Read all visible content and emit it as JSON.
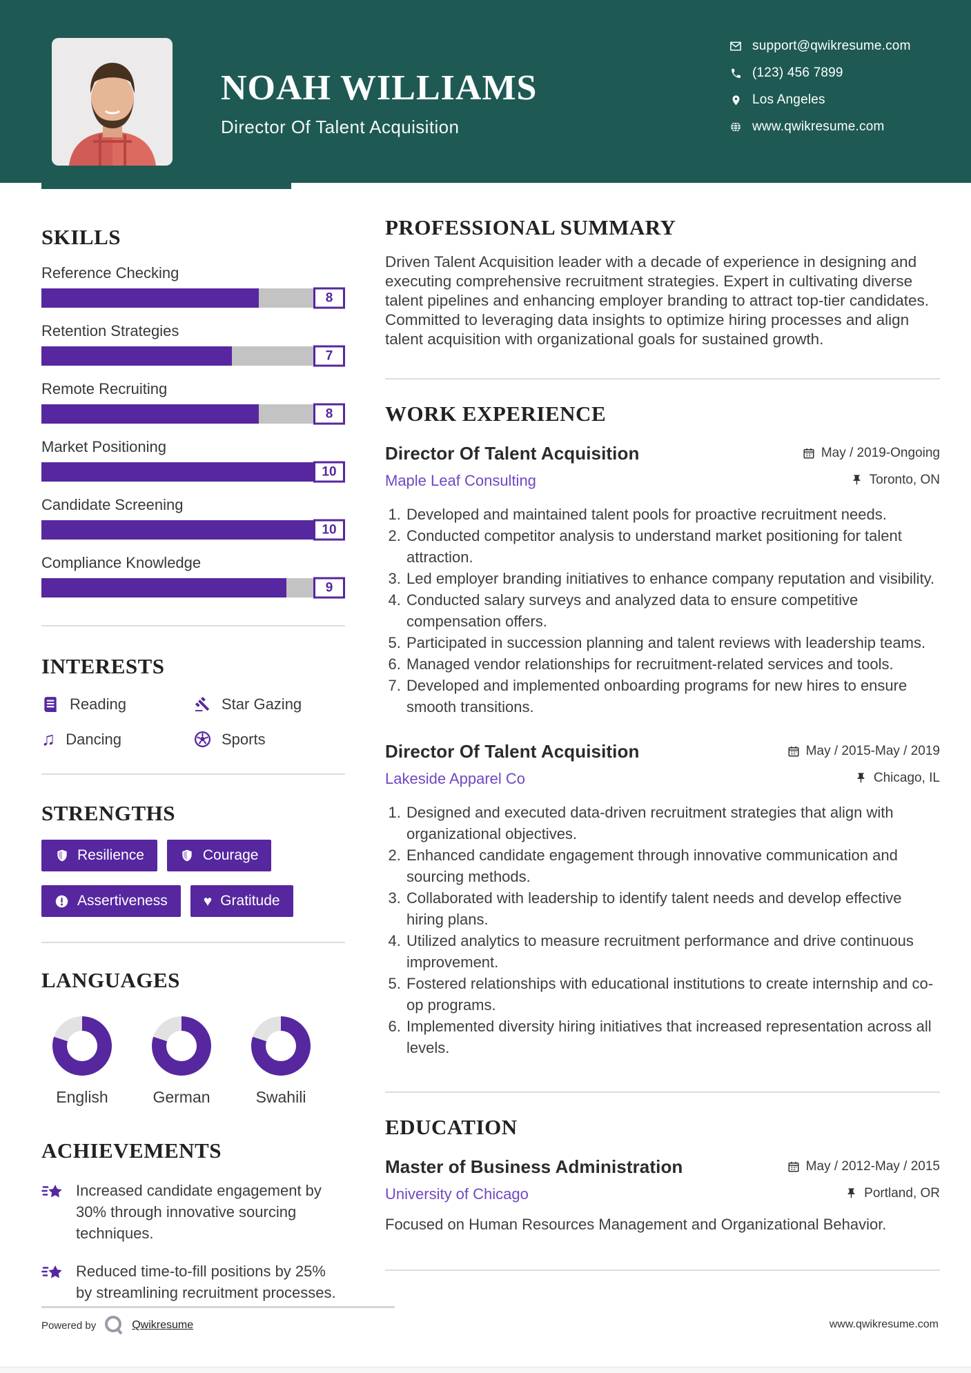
{
  "colors": {
    "accent_teal": "#1e5a53",
    "accent_purple": "#56279f",
    "link_purple": "#7048c0",
    "bar_track_gray": "#c3c3c3",
    "donut_gray": "#e2e2e2"
  },
  "header": {
    "name": "NOAH WILLIAMS",
    "headline": "Director Of Talent Acquisition",
    "contacts": [
      {
        "icon": "email-icon",
        "text": "support@qwikresume.com"
      },
      {
        "icon": "phone-icon",
        "text": "(123) 456 7899"
      },
      {
        "icon": "location-icon",
        "text": "Los Angeles"
      },
      {
        "icon": "globe-icon",
        "text": "www.qwikresume.com"
      }
    ]
  },
  "skills": {
    "title": "SKILLS",
    "max": 10,
    "items": [
      {
        "label": "Reference Checking",
        "value": 8
      },
      {
        "label": "Retention Strategies",
        "value": 7
      },
      {
        "label": "Remote Recruiting",
        "value": 8
      },
      {
        "label": "Market Positioning",
        "value": 10
      },
      {
        "label": "Candidate Screening",
        "value": 10
      },
      {
        "label": "Compliance Knowledge",
        "value": 9
      }
    ]
  },
  "interests": {
    "title": "INTERESTS",
    "items": [
      {
        "icon": "book-icon",
        "label": "Reading"
      },
      {
        "icon": "gavel-icon",
        "label": "Star Gazing"
      },
      {
        "icon": "music-note-icon",
        "label": "Dancing"
      },
      {
        "icon": "soccer-ball-icon",
        "label": "Sports"
      }
    ]
  },
  "strengths": {
    "title": "STRENGTHS",
    "items": [
      {
        "icon": "shield-icon",
        "label": "Resilience"
      },
      {
        "icon": "shield-icon",
        "label": "Courage"
      },
      {
        "icon": "exclamation-circle-icon",
        "label": "Assertiveness"
      },
      {
        "icon": "heart-icon",
        "label": "Gratitude"
      }
    ]
  },
  "languages": {
    "title": "LANGUAGES",
    "items": [
      {
        "label": "English",
        "percent": 80
      },
      {
        "label": "German",
        "percent": 80
      },
      {
        "label": "Swahili",
        "percent": 80
      }
    ]
  },
  "achievements": {
    "title": "ACHIEVEMENTS",
    "items": [
      {
        "text": "Increased candidate engagement by 30% through innovative sourcing techniques."
      },
      {
        "text": "Reduced time-to-fill positions by 25% by streamlining recruitment processes."
      }
    ]
  },
  "summary": {
    "title": "PROFESSIONAL SUMMARY",
    "text": "Driven Talent Acquisition leader with a decade of experience in designing and executing comprehensive recruitment strategies. Expert in cultivating diverse talent pipelines and enhancing employer branding to attract top-tier candidates. Committed to leveraging data insights to optimize hiring processes and align talent acquisition with organizational goals for sustained growth."
  },
  "work": {
    "title": "WORK EXPERIENCE",
    "jobs": [
      {
        "role": "Director Of Talent Acquisition",
        "company": "Maple Leaf Consulting",
        "date": "May / 2019-Ongoing",
        "location": "Toronto, ON",
        "bullets": [
          "Developed and maintained talent pools for proactive recruitment needs.",
          "Conducted competitor analysis to understand market positioning for talent attraction.",
          "Led employer branding initiatives to enhance company reputation and visibility.",
          "Conducted salary surveys and analyzed data to ensure competitive compensation offers.",
          "Participated in succession planning and talent reviews with leadership teams.",
          "Managed vendor relationships for recruitment-related services and tools.",
          "Developed and implemented onboarding programs for new hires to ensure smooth transitions."
        ]
      },
      {
        "role": "Director Of Talent Acquisition",
        "company": "Lakeside Apparel Co",
        "date": "May / 2015-May / 2019",
        "location": "Chicago, IL",
        "bullets": [
          "Designed and executed data-driven recruitment strategies that align with organizational objectives.",
          "Enhanced candidate engagement through innovative communication and sourcing methods.",
          "Collaborated with leadership to identify talent needs and develop effective hiring plans.",
          "Utilized analytics to measure recruitment performance and drive continuous improvement.",
          "Fostered relationships with educational institutions to create internship and co-op programs.",
          "Implemented diversity hiring initiatives that increased representation across all levels."
        ]
      }
    ]
  },
  "education": {
    "title": "EDUCATION",
    "degree": "Master of Business Administration",
    "school": "University of Chicago",
    "date": "May / 2012-May / 2015",
    "location": "Portland, OR",
    "note": "Focused on Human Resources Management and Organizational Behavior."
  },
  "footer": {
    "powered_by": "Powered by",
    "brand": "Qwikresume",
    "website": "www.qwikresume.com"
  }
}
